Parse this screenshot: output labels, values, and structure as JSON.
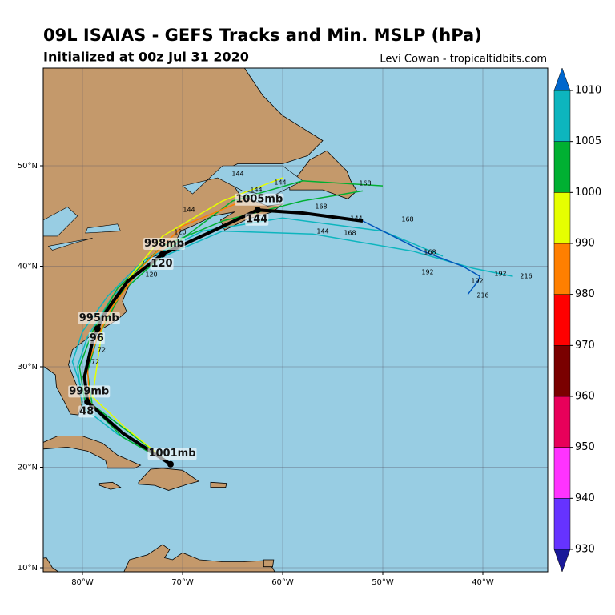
{
  "header": {
    "title": "09L ISAIAS - GEFS Tracks and Min. MSLP (hPa)",
    "subtitle": "Initialized at 00z Jul 31 2020",
    "credit": "Levi Cowan - tropicaltidbits.com"
  },
  "map": {
    "lat_ticks": [
      {
        "value": 10,
        "label": "10°N"
      },
      {
        "value": 20,
        "label": "20°N"
      },
      {
        "value": 30,
        "label": "30°N"
      },
      {
        "value": 40,
        "label": "40°N"
      },
      {
        "value": 50,
        "label": "50°N"
      }
    ],
    "lon_ticks": [
      {
        "value": -80,
        "label": "80°W"
      },
      {
        "value": -70,
        "label": "70°W"
      },
      {
        "value": -60,
        "label": "60°W"
      },
      {
        "value": -50,
        "label": "50°W"
      },
      {
        "value": -40,
        "label": "40°W"
      }
    ],
    "mean_track": {
      "lon": [
        -71.2,
        -76,
        -79.5,
        -79.8,
        -79,
        -78,
        -75.5,
        -72,
        -67,
        -62.5,
        -58,
        -52
      ],
      "lat": [
        20.3,
        23.4,
        26.5,
        29,
        32.5,
        35,
        38.5,
        41.2,
        43.5,
        45.6,
        45.3,
        44.5
      ],
      "color": "#000000"
    },
    "mean_labels": [
      {
        "text": "1001mb",
        "lon": -71.2,
        "lat": 20.3
      },
      {
        "text": "999mb",
        "lon": -79.5,
        "lat": 26.5
      },
      {
        "text": "48",
        "lon": -79.5,
        "lat": 26.5
      },
      {
        "text": "995mb",
        "lon": -78.5,
        "lat": 33.8
      },
      {
        "text": "96",
        "lon": -78.5,
        "lat": 33.8
      },
      {
        "text": "998mb",
        "lon": -72,
        "lat": 41.2
      },
      {
        "text": "120",
        "lon": -72,
        "lat": 41.2
      },
      {
        "text": "1005mb",
        "lon": -62.5,
        "lat": 45.6
      },
      {
        "text": "144",
        "lon": -62.5,
        "lat": 45.6
      }
    ],
    "members": [
      {
        "color": "#0db5be",
        "lon": [
          -71.2,
          -76.5,
          -80,
          -80.5,
          -79.5,
          -77,
          -73,
          -66,
          -57,
          -47,
          -41,
          -37
        ],
        "lat": [
          20.3,
          23.3,
          26,
          30,
          33,
          37,
          40.5,
          43.5,
          43.2,
          41.5,
          39.8,
          39
        ]
      },
      {
        "color": "#0db5be",
        "lon": [
          -71.2,
          -76,
          -79.8,
          -81,
          -80,
          -77.5,
          -74,
          -68,
          -60,
          -50,
          -44
        ],
        "lat": [
          20.3,
          23.5,
          27,
          30.5,
          33.5,
          37,
          40.5,
          43.5,
          44.8,
          43.5,
          41
        ]
      },
      {
        "color": "#00b032",
        "lon": [
          -71.2,
          -76,
          -79,
          -79.5,
          -78.5,
          -76,
          -71,
          -65,
          -58,
          -50
        ],
        "lat": [
          20.3,
          23,
          26,
          29.5,
          33,
          37.5,
          42,
          46.5,
          48.5,
          48
        ]
      },
      {
        "color": "#00b032",
        "lon": [
          -71.2,
          -75.5,
          -79.8,
          -80.3,
          -79,
          -76.5,
          -72,
          -66,
          -58,
          -52
        ],
        "lat": [
          20.3,
          23.6,
          26.8,
          30,
          33.5,
          37.8,
          42,
          44.5,
          46.5,
          47.5
        ]
      },
      {
        "color": "#e6ff00",
        "lon": [
          -71.2,
          -75.8,
          -79,
          -78.5,
          -78,
          -76,
          -72,
          -66,
          -60
        ],
        "lat": [
          20.3,
          24,
          27,
          30.5,
          34,
          38,
          43,
          46.5,
          48.8
        ]
      },
      {
        "color": "#ff7f00",
        "lon": [
          -71.2,
          -76,
          -79.3,
          -79.5,
          -78.5,
          -77,
          -74,
          -70,
          -64
        ],
        "lat": [
          20.3,
          23.4,
          26.5,
          30,
          33,
          36,
          40,
          44,
          46.5
        ]
      },
      {
        "color": "#0055bb",
        "lon": [
          -52,
          -46,
          -42,
          -40.3,
          -40.5,
          -41.5
        ],
        "lat": [
          44.5,
          41.5,
          40,
          39,
          38.5,
          37.2
        ]
      }
    ],
    "member_labels": [
      "144",
      "144",
      "144",
      "168",
      "168",
      "168",
      "168",
      "168",
      "192",
      "192",
      "192",
      "216",
      "216",
      "120",
      "120",
      "72",
      "72",
      "144",
      "144",
      "144"
    ]
  },
  "colorbar": {
    "ticks": [
      930,
      940,
      950,
      960,
      970,
      980,
      990,
      1000,
      1005,
      1010
    ],
    "colors": [
      "#6633ff",
      "#ff33ff",
      "#e8005a",
      "#7a0000",
      "#ff0000",
      "#ff7f00",
      "#e6ff00",
      "#00b032",
      "#0db5be"
    ],
    "low_color": "#1a1a99",
    "high_color": "#0066cc"
  }
}
